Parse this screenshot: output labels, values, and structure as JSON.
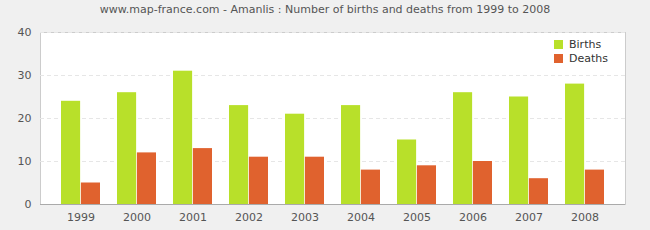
{
  "chart_data": {
    "type": "bar",
    "title": "www.map-france.com - Amanlis : Number of births and deaths from 1999 to 2008",
    "categories": [
      "1999",
      "2000",
      "2001",
      "2002",
      "2003",
      "2004",
      "2005",
      "2006",
      "2007",
      "2008"
    ],
    "series": [
      {
        "name": "Births",
        "color": "#b8e02a",
        "values": [
          24,
          26,
          31,
          23,
          21,
          23,
          15,
          26,
          25,
          28
        ]
      },
      {
        "name": "Deaths",
        "color": "#e0622e",
        "values": [
          5,
          12,
          13,
          11,
          11,
          8,
          9,
          10,
          6,
          8
        ]
      }
    ],
    "ylim": [
      0,
      40
    ],
    "yticks": [
      0,
      10,
      20,
      30,
      40
    ],
    "grid": true,
    "legend": "top-right"
  }
}
